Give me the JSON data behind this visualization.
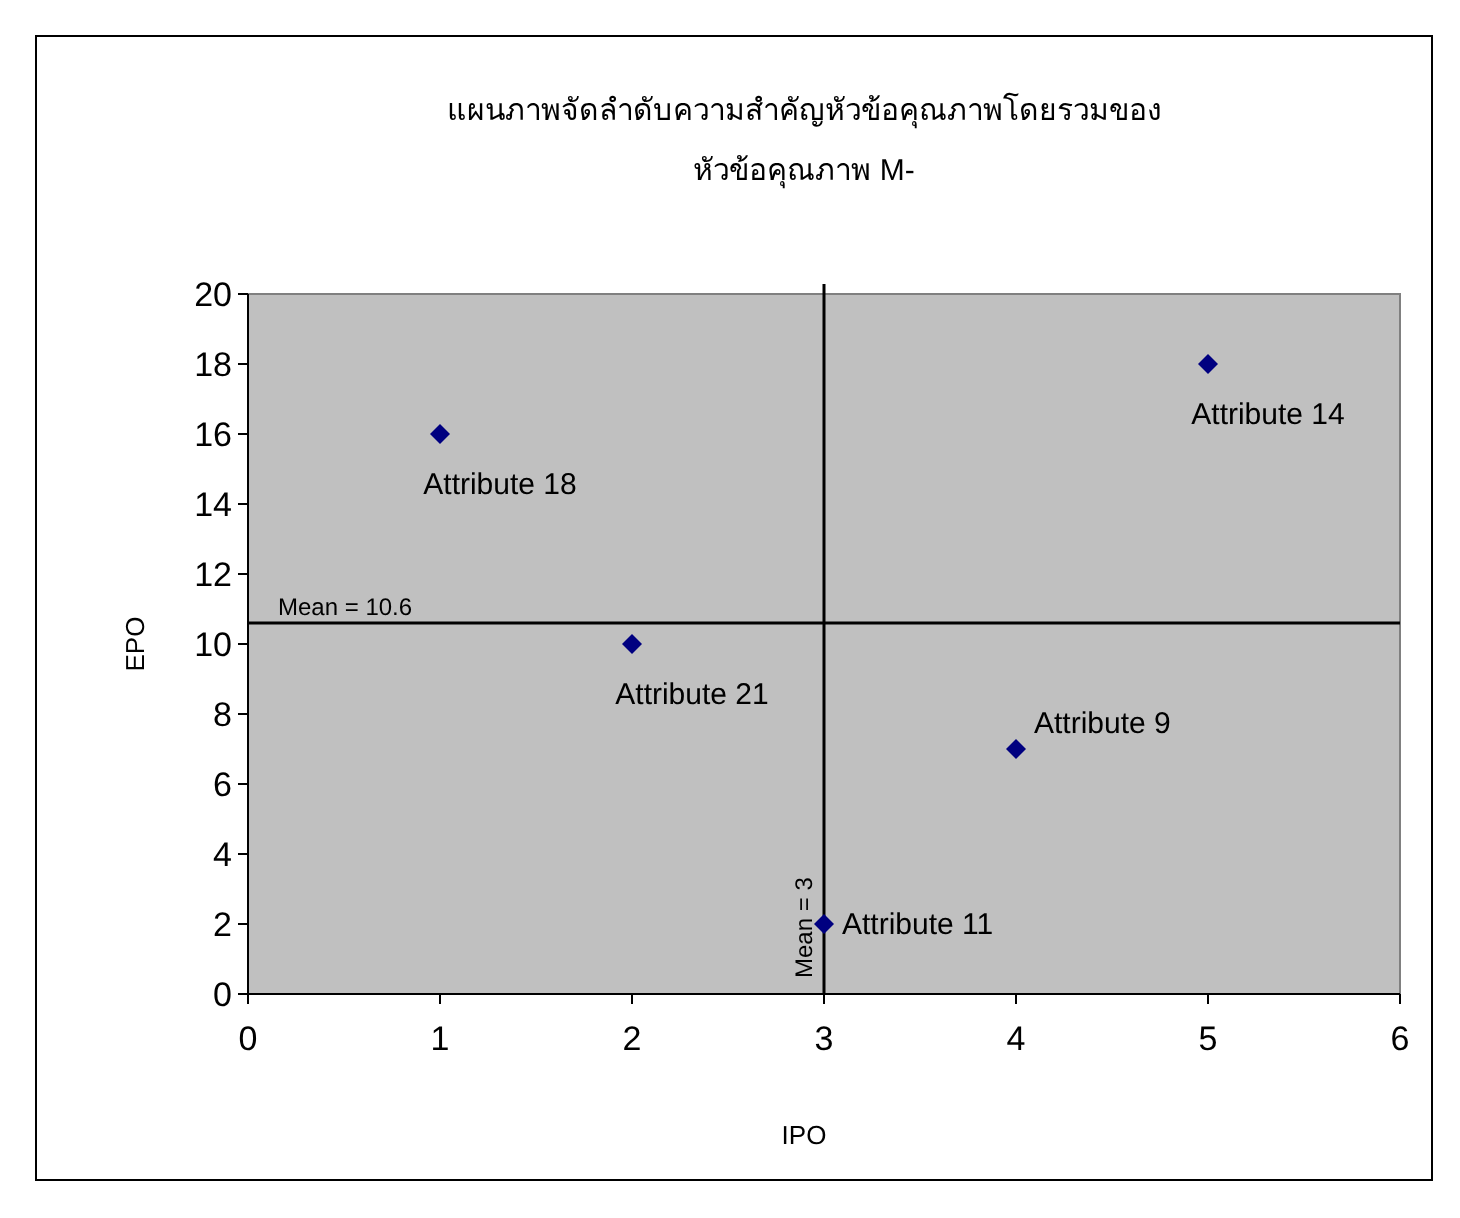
{
  "chart_data": {
    "type": "scatter",
    "title": "แผนภาพจัดลำดับความสำคัญหัวข้อคุณภาพโดยรวมของ\nหัวข้อคุณภาพ M-",
    "xlabel": "IPO",
    "ylabel": "EPO",
    "x": [
      1,
      2,
      3,
      4,
      5
    ],
    "series": [
      {
        "color": "#000080",
        "values": [
          16,
          10,
          2,
          7,
          18
        ]
      }
    ],
    "marker": "diamond",
    "grid": false,
    "xlim": [
      0,
      6
    ],
    "xticks": [
      0,
      1,
      2,
      3,
      4,
      5,
      6
    ],
    "ylim": [
      0,
      20
    ],
    "yticks": [
      0,
      2,
      4,
      6,
      8,
      10,
      12,
      14,
      16,
      18,
      20
    ],
    "ref_lines": [
      {
        "axis": "y",
        "value": 10.6,
        "label": "Mean = 10.6",
        "color": "#000000"
      },
      {
        "axis": "x",
        "value": 3,
        "label": "Mean = 3",
        "color": "#000000"
      }
    ],
    "annotations": [
      {
        "text": "Attribute 18",
        "x": 1,
        "y": 16
      },
      {
        "text": "Attribute 21",
        "x": 2,
        "y": 10
      },
      {
        "text": "Attribute 11",
        "x": 3,
        "y": 2
      },
      {
        "text": "Attribute 9",
        "x": 4,
        "y": 7
      },
      {
        "text": "Attribute 14",
        "x": 5,
        "y": 18
      }
    ]
  }
}
